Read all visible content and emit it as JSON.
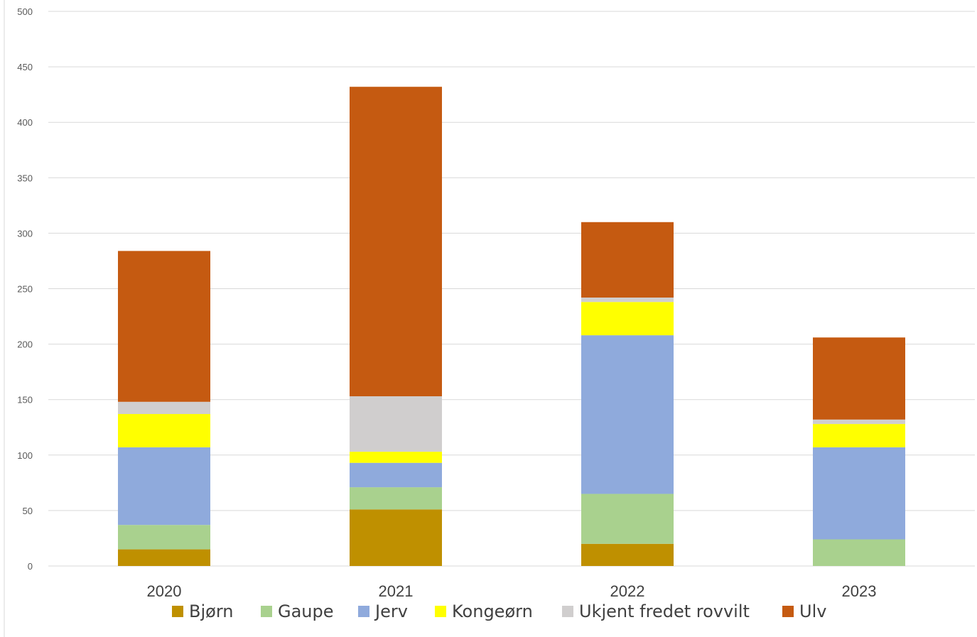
{
  "chart_data": {
    "type": "bar",
    "stacked": true,
    "categories": [
      "2020",
      "2021",
      "2022",
      "2023"
    ],
    "series": [
      {
        "name": "Bjørn",
        "color": "#bf9000",
        "values": [
          15,
          51,
          20,
          0
        ]
      },
      {
        "name": "Gaupe",
        "color": "#a9d18e",
        "values": [
          22,
          20,
          45,
          24
        ]
      },
      {
        "name": "Jerv",
        "color": "#8faadc",
        "values": [
          70,
          22,
          143,
          83
        ]
      },
      {
        "name": "Kongeørn",
        "color": "#ffff00",
        "values": [
          30,
          10,
          30,
          21
        ]
      },
      {
        "name": "Ukjent fredet rovvilt",
        "color": "#d0cece",
        "values": [
          11,
          50,
          4,
          4
        ]
      },
      {
        "name": "Ulv",
        "color": "#c55a11",
        "values": [
          136,
          279,
          68,
          74
        ]
      }
    ],
    "ylim": [
      0,
      500
    ],
    "yticks": [
      "0",
      "50",
      "100",
      "150",
      "200",
      "250",
      "300",
      "350",
      "400",
      "450",
      "500"
    ],
    "grid": true,
    "legend_position": "bottom"
  }
}
